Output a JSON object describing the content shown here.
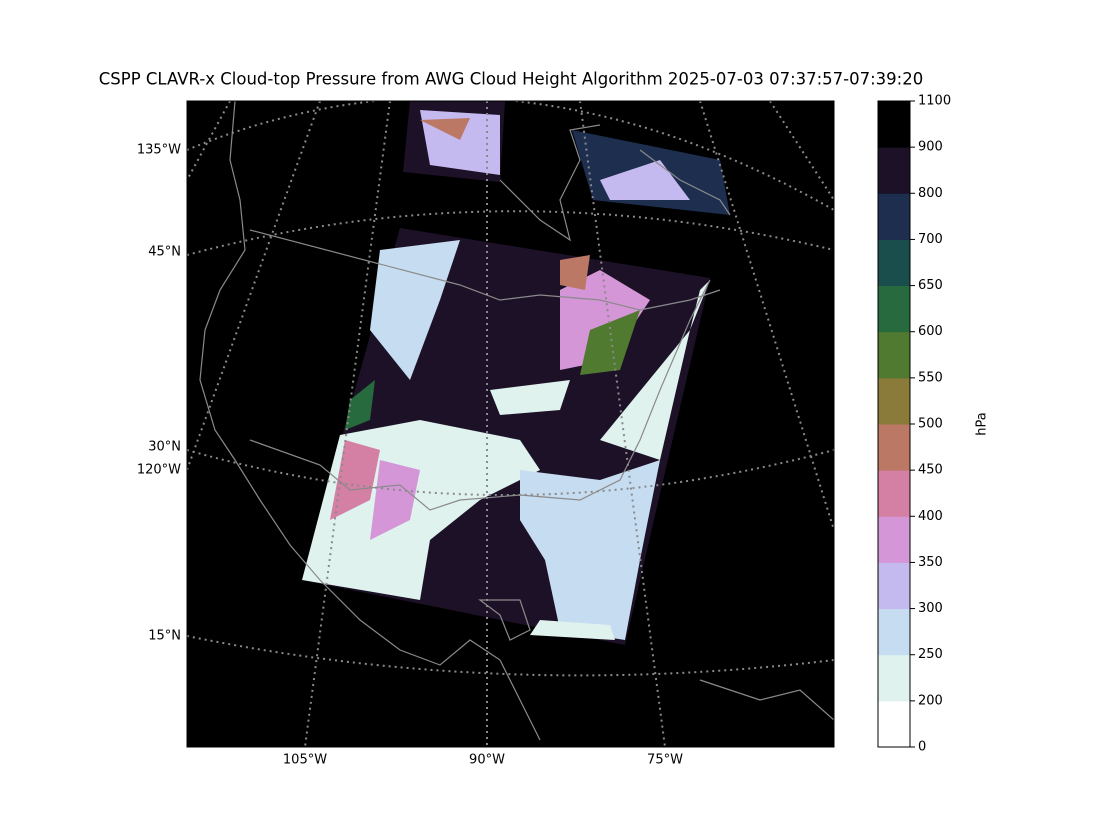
{
  "title": "CSPP CLAVR-x Cloud-top Pressure from AWG Cloud Height Algorithm 2025-07-03 07:37:57-07:39:20",
  "map": {
    "labels": [
      "135°W",
      "45°N",
      "30°N",
      "120°W",
      "15°N",
      "105°W",
      "90°W",
      "75°W"
    ]
  },
  "colorbar": {
    "label": "hPa",
    "boundaries": [
      0,
      200,
      250,
      300,
      350,
      400,
      450,
      500,
      550,
      600,
      650,
      700,
      800,
      900,
      1100
    ],
    "colors": [
      "#ffffff",
      "#dff2ee",
      "#c6dcf0",
      "#c5baf0",
      "#d596d8",
      "#d47fa4",
      "#bb7865",
      "#8a7b3a",
      "#4f7a2f",
      "#276a3e",
      "#1a4e4c",
      "#1d2e4f",
      "#1d1127",
      "#000000"
    ]
  }
}
